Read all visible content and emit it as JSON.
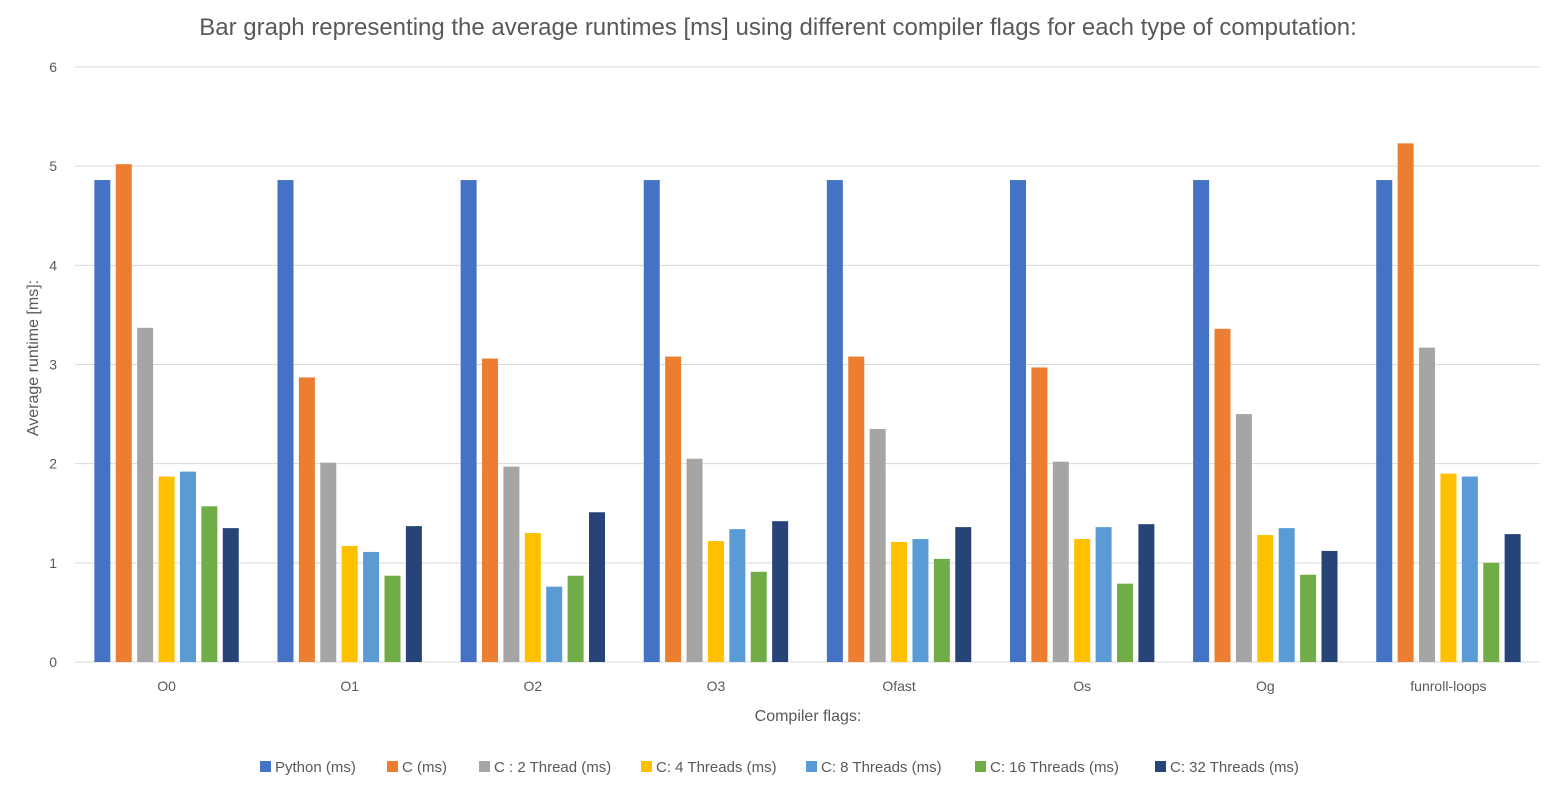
{
  "chart_data": {
    "type": "bar",
    "title": "Bar graph representing the average runtimes [ms] using different compiler flags for each type of computation:",
    "xlabel": "Compiler flags:",
    "ylabel": "Average runtime [ms]:",
    "ylim": [
      0,
      6
    ],
    "yticks": [
      "0",
      "1",
      "2",
      "3",
      "4",
      "5",
      "6"
    ],
    "grid": true,
    "legend_position": "bottom",
    "categories": [
      "O0",
      "O1",
      "O2",
      "O3",
      "Ofast",
      "Os",
      "Og",
      "funroll-loops"
    ],
    "series": [
      {
        "name": "Python (ms)",
        "color": "#4472c4",
        "values": [
          4.86,
          4.86,
          4.86,
          4.86,
          4.86,
          4.86,
          4.86,
          4.86
        ]
      },
      {
        "name": "C (ms)",
        "color": "#ed7d31",
        "values": [
          5.02,
          2.87,
          3.06,
          3.08,
          3.08,
          2.97,
          3.36,
          5.23
        ]
      },
      {
        "name": "C : 2 Thread (ms)",
        "color": "#a5a5a5",
        "values": [
          3.37,
          2.01,
          1.97,
          2.05,
          2.35,
          2.02,
          2.5,
          3.17
        ]
      },
      {
        "name": "C: 4 Threads (ms)",
        "color": "#ffc000",
        "values": [
          1.87,
          1.17,
          1.3,
          1.22,
          1.21,
          1.24,
          1.28,
          1.9
        ]
      },
      {
        "name": "C: 8 Threads (ms)",
        "color": "#5b9bd5",
        "values": [
          1.92,
          1.11,
          0.76,
          1.34,
          1.24,
          1.36,
          1.35,
          1.87
        ]
      },
      {
        "name": "C: 16 Threads (ms)",
        "color": "#70ad47",
        "values": [
          1.57,
          0.87,
          0.87,
          0.91,
          1.04,
          0.79,
          0.88,
          1.0
        ]
      },
      {
        "name": "C: 32 Threads (ms)",
        "color": "#264478",
        "values": [
          1.35,
          1.37,
          1.51,
          1.42,
          1.36,
          1.39,
          1.12,
          1.29
        ]
      }
    ]
  }
}
